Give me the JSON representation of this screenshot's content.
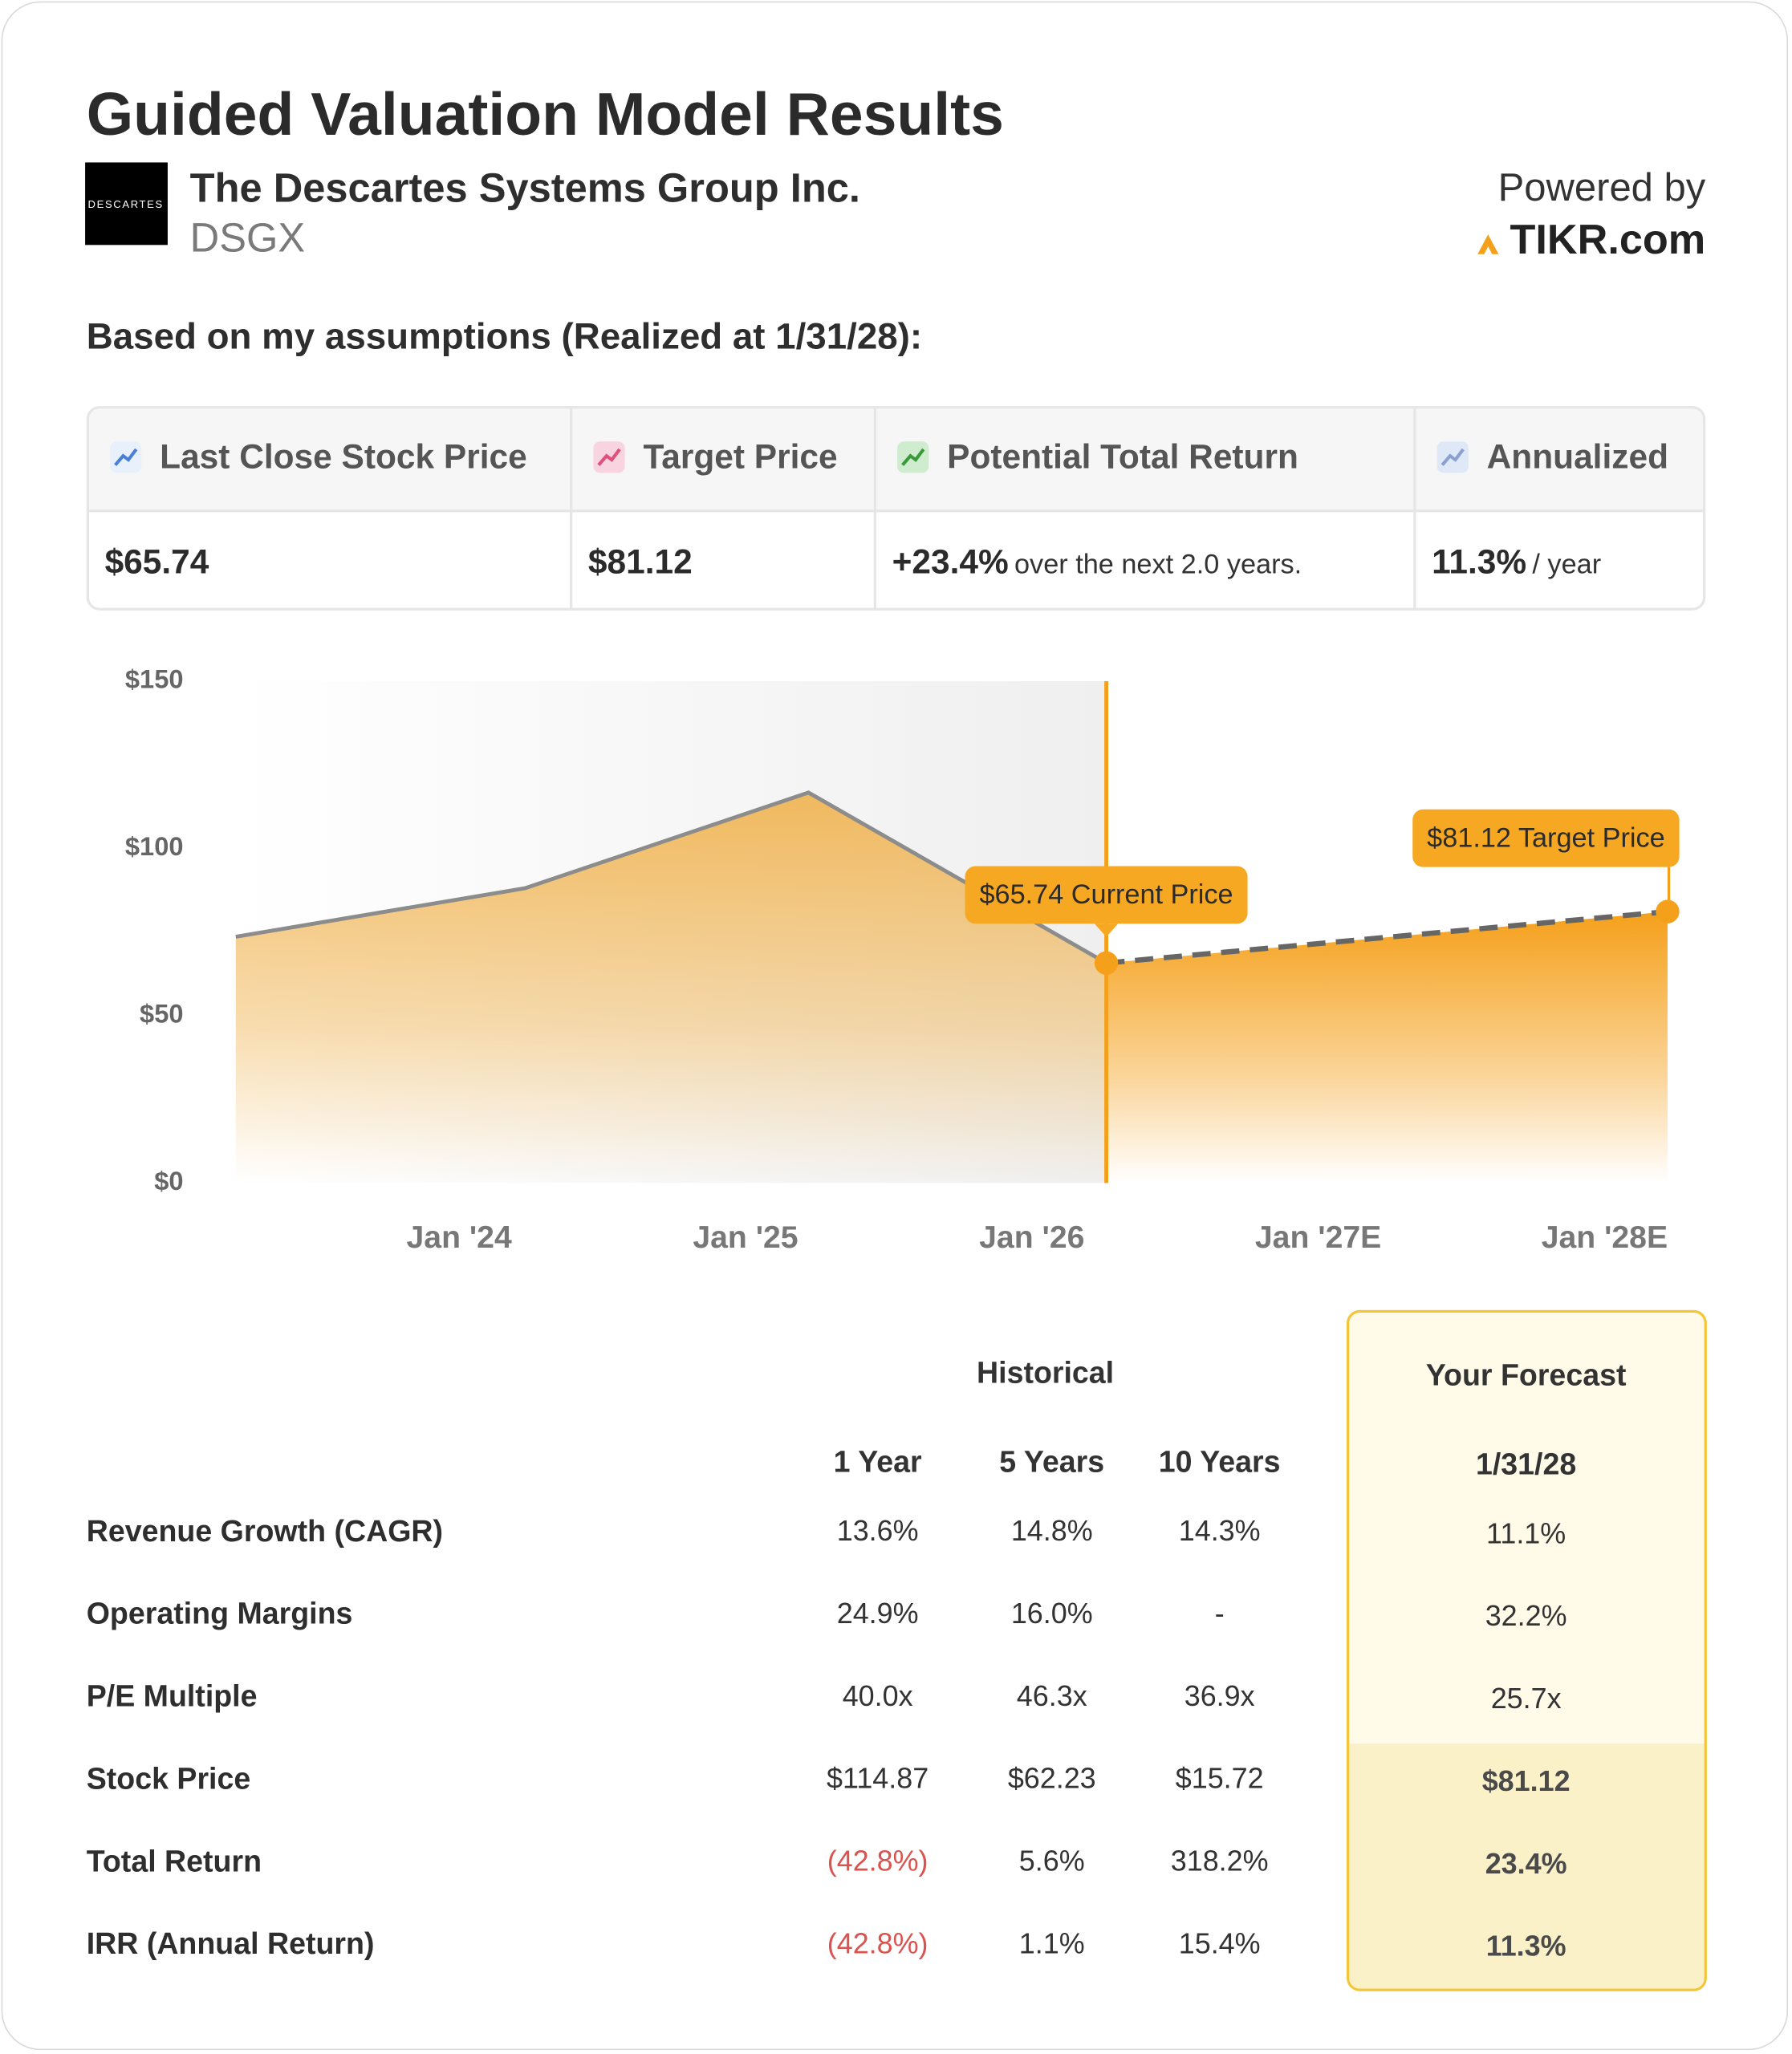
{
  "header": {
    "title": "Guided Valuation Model Results",
    "company": "The Descartes Systems Group Inc.",
    "ticker": "DSGX",
    "logo_text": "DESCARTES",
    "powered_by": "Powered by",
    "brand": "TIKR.com"
  },
  "assumptions": "Based on my assumptions (Realized at 1/31/28):",
  "metrics": [
    {
      "label": "Last Close Stock Price",
      "value": "$65.74"
    },
    {
      "label": "Target Price",
      "value": "$81.12"
    },
    {
      "label": "Potential Total Return",
      "value": "+23.4%",
      "note": "over the next 2.0 years."
    },
    {
      "label": "Annualized",
      "value": "11.3%",
      "note": "/ year"
    }
  ],
  "chart_data": {
    "type": "area",
    "x": [
      2023.22,
      2024.23,
      2025.22,
      2026.26,
      2028.22
    ],
    "xlim": [
      2023.22,
      2028.22
    ],
    "xticks": [
      {
        "value": 2024,
        "label": "Jan '24"
      },
      {
        "value": 2025,
        "label": "Jan '25"
      },
      {
        "value": 2026,
        "label": "Jan '26"
      },
      {
        "value": 2027,
        "label": "Jan '27E"
      },
      {
        "value": 2028,
        "label": "Jan '28E"
      }
    ],
    "ylim": [
      0,
      150
    ],
    "yticks": [
      {
        "value": 0,
        "label": "$0"
      },
      {
        "value": 50,
        "label": "$50"
      },
      {
        "value": 100,
        "label": "$100"
      },
      {
        "value": 150,
        "label": "$150"
      }
    ],
    "series": [
      {
        "color": "#f0b24d",
        "line_color": "#8c8c8c",
        "dashed": false,
        "values": [
          73.6,
          88.1,
          116.7,
          65.74,
          null
        ]
      },
      {
        "color": "#f5a01a",
        "line_color": "#666666",
        "dashed": true,
        "values": [
          null,
          null,
          null,
          65.74,
          81.12
        ]
      }
    ],
    "annotations": [
      "$65.74 Current Price",
      "$81.12 Target Price"
    ]
  },
  "table": {
    "group_headers": [
      "Historical",
      "Your Forecast"
    ],
    "columns": [
      "1 Year",
      "5 Years",
      "10 Years",
      "1/31/28"
    ],
    "rows": [
      {
        "label": "Revenue Growth (CAGR)",
        "values": [
          "13.6%",
          "14.8%",
          "14.3%",
          "11.1%"
        ]
      },
      {
        "label": "Operating Margins",
        "values": [
          "24.9%",
          "16.0%",
          "-",
          "32.2%"
        ]
      },
      {
        "label": "P/E Multiple",
        "values": [
          "40.0x",
          "46.3x",
          "36.9x",
          "25.7x"
        ]
      },
      {
        "label": "Stock Price",
        "values": [
          "$114.87",
          "$62.23",
          "$15.72",
          "$81.12"
        ]
      },
      {
        "label": "Total Return",
        "values": [
          "(42.8%)",
          "5.6%",
          "318.2%",
          "23.4%"
        ]
      },
      {
        "label": "IRR (Annual Return)",
        "values": [
          "(42.8%)",
          "1.1%",
          "15.4%",
          "11.3%"
        ]
      }
    ]
  }
}
